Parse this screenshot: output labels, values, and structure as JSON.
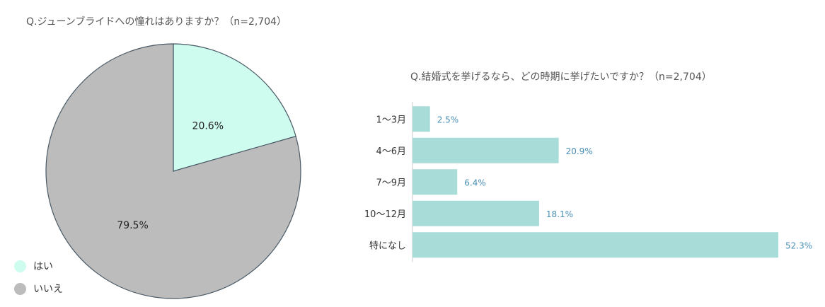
{
  "chart_data": [
    {
      "type": "pie",
      "title": "Q.ジューンブライドへの憧れはありますか？（n=2,704）",
      "slices": [
        {
          "label": "はい",
          "value": 20.6,
          "value_label": "20.6%",
          "color": "#cefcef"
        },
        {
          "label": "いいえ",
          "value": 79.5,
          "value_label": "79.5%",
          "color": "#bcbcbc"
        }
      ],
      "legend_position": "bottom-left"
    },
    {
      "type": "bar",
      "orientation": "horizontal",
      "title": "Q.結婚式を挙げるなら、どの時期に挙げたいですか？（n=2,704）",
      "categories": [
        "1〜3月",
        "4〜6月",
        "7〜9月",
        "10〜12月",
        "特になし"
      ],
      "values": [
        2.5,
        20.9,
        6.4,
        18.1,
        52.3
      ],
      "value_labels": [
        "2.5%",
        "20.9%",
        "6.4%",
        "18.1%",
        "52.3%"
      ],
      "color": "#a8dcd8",
      "label_color": "#4a8fb5",
      "grid": false
    }
  ]
}
